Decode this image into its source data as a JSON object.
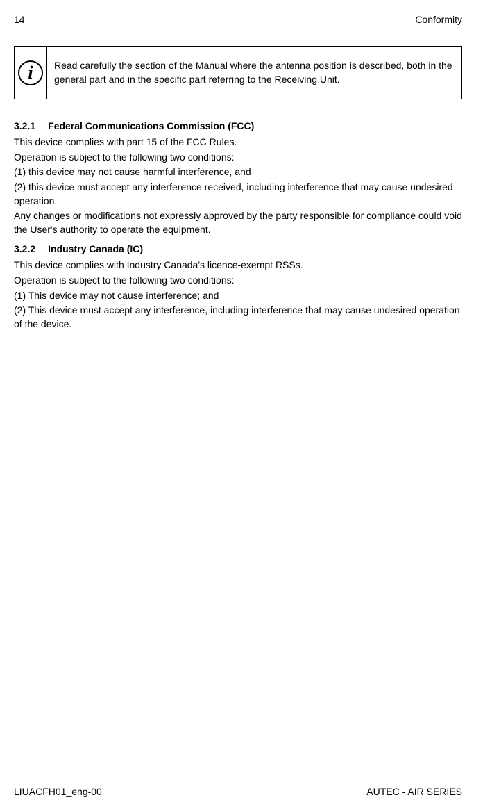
{
  "header": {
    "page_number": "14",
    "section": "Conformity"
  },
  "info_box": {
    "icon_label": "i",
    "text": "Read carefully the section of the Manual where the antenna position is described, both in the general part and in the specific part referring to the Receiving Unit."
  },
  "section_321": {
    "number": "3.2.1",
    "title": "Federal Communications Commission (FCC)",
    "lines": [
      "This device complies with part 15 of the FCC Rules.",
      "Operation is subject to the following two conditions:",
      "(1) this device may not cause harmful interference, and",
      "(2) this device must accept any interference received, including interference that may cause undesired operation.",
      "Any changes or modifications not expressly approved by the party responsible for compliance could void the User's authority to operate the equipment."
    ]
  },
  "section_322": {
    "number": "3.2.2",
    "title": "Industry Canada (IC)",
    "lines": [
      "This device complies with Industry Canada's licence-exempt RSSs.",
      "Operation is subject to the following two conditions:",
      "(1) This device may not cause interference; and",
      "(2) This device must accept any interference, including interference that may cause undesired operation of the device."
    ]
  },
  "footer": {
    "left": "LIUACFH01_eng-00",
    "right": "AUTEC - AIR SERIES"
  }
}
